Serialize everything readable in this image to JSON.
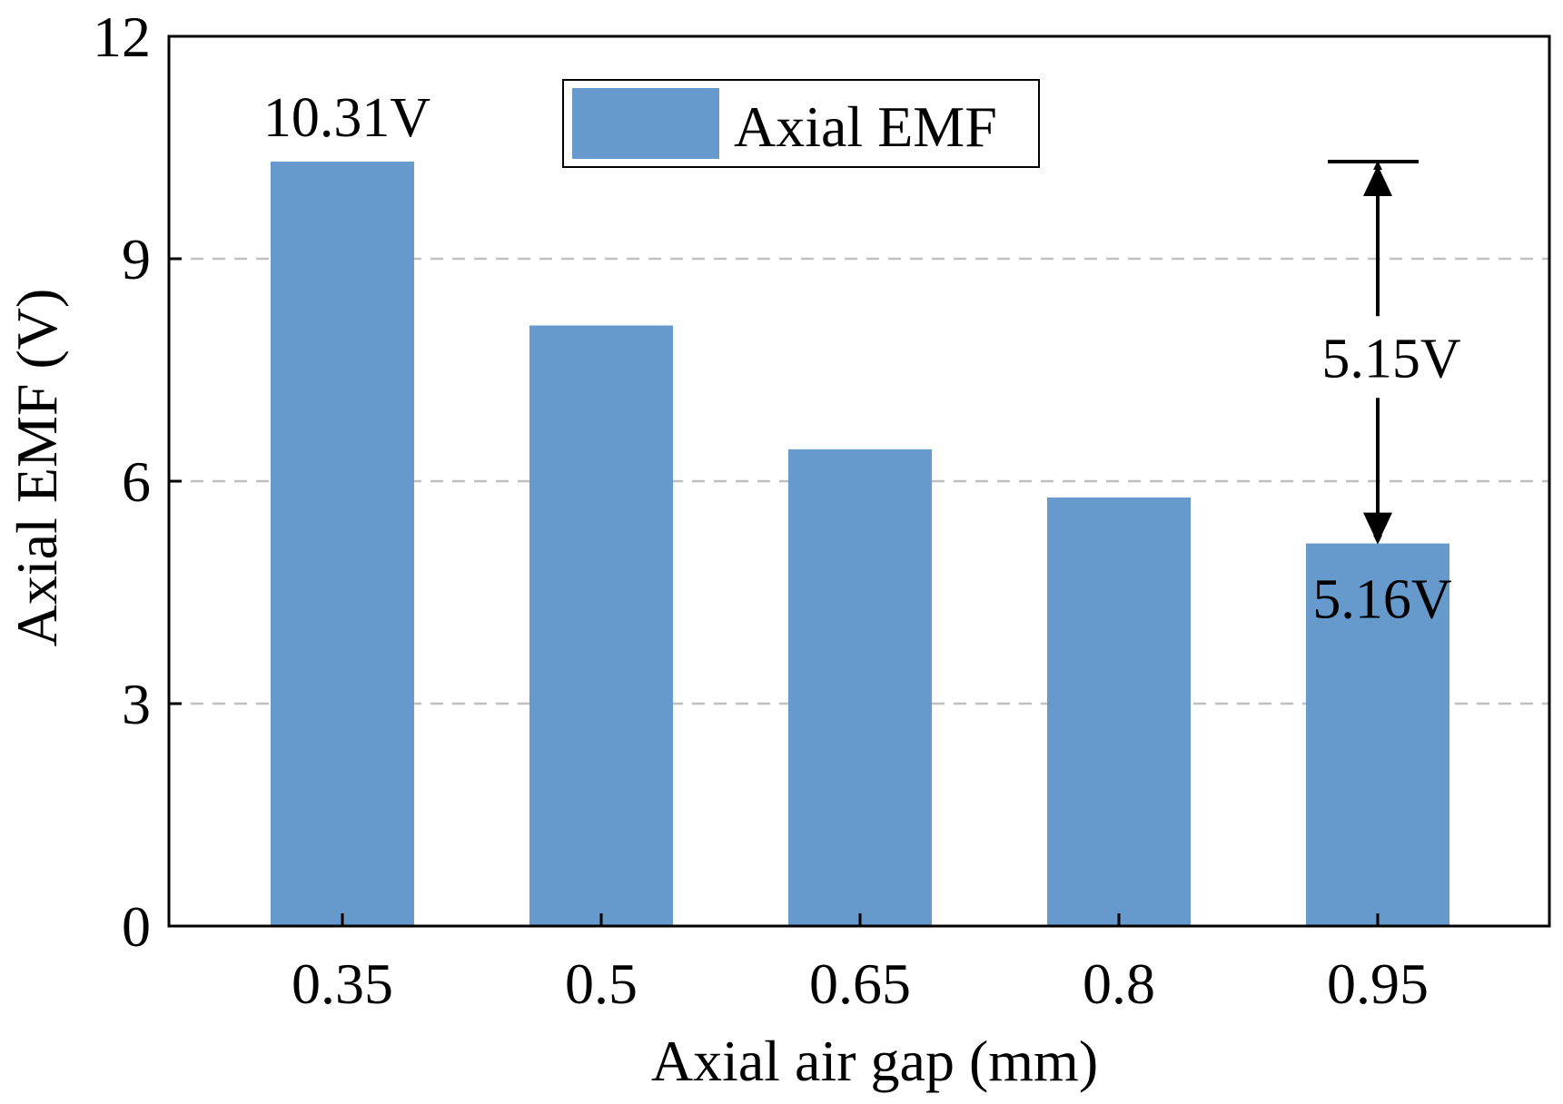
{
  "chart_data": {
    "type": "bar",
    "categories": [
      "0.35",
      "0.5",
      "0.65",
      "0.8",
      "0.95"
    ],
    "series": [
      {
        "name": "Axial EMF",
        "values": [
          10.31,
          8.1,
          6.43,
          5.78,
          5.16
        ]
      }
    ],
    "xlabel": "Axial air gap (mm)",
    "ylabel": "Axial EMF (V)",
    "ylim": [
      0,
      12
    ],
    "yticks": [
      0,
      3,
      6,
      9,
      12
    ],
    "grid": {
      "y": true,
      "style": "dashed"
    },
    "legend": {
      "placement": "top-center",
      "entries": [
        "Axial EMF"
      ]
    },
    "colors": {
      "bar": "#6699cc",
      "grid": "#c0c0c0",
      "axis": "#000000"
    },
    "annotations": {
      "first_bar_label": "10.31V",
      "last_bar_label": "5.16V",
      "difference_label": "5.15V",
      "difference_from": 10.31,
      "difference_to": 5.16
    }
  }
}
